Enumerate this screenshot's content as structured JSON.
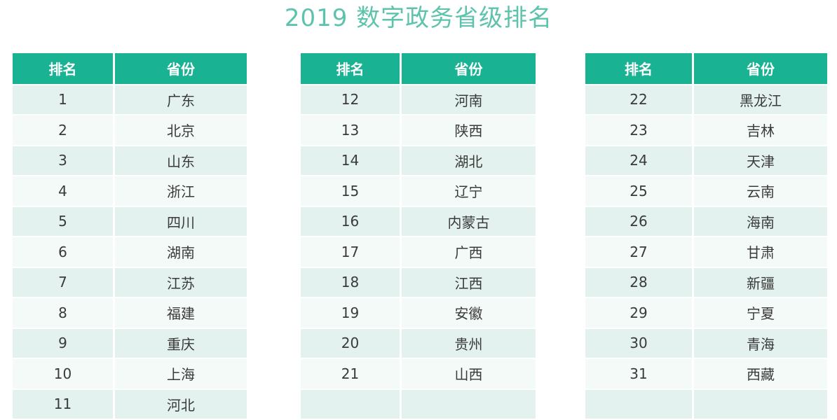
{
  "title": "2019 数字政务省级排名",
  "headers": {
    "rank": "排名",
    "province": "省份"
  },
  "colors": {
    "title": "#5ec3ad",
    "header_bg": "#19b293",
    "row_odd": "#e3f2ee",
    "row_even": "#f4faf8"
  },
  "tables": [
    {
      "rows": [
        {
          "rank": "1",
          "province": "广东"
        },
        {
          "rank": "2",
          "province": "北京"
        },
        {
          "rank": "3",
          "province": "山东"
        },
        {
          "rank": "4",
          "province": "浙江"
        },
        {
          "rank": "5",
          "province": "四川"
        },
        {
          "rank": "6",
          "province": "湖南"
        },
        {
          "rank": "7",
          "province": "江苏"
        },
        {
          "rank": "8",
          "province": "福建"
        },
        {
          "rank": "9",
          "province": "重庆"
        },
        {
          "rank": "10",
          "province": "上海"
        },
        {
          "rank": "11",
          "province": "河北"
        }
      ]
    },
    {
      "rows": [
        {
          "rank": "12",
          "province": "河南"
        },
        {
          "rank": "13",
          "province": "陕西"
        },
        {
          "rank": "14",
          "province": "湖北"
        },
        {
          "rank": "15",
          "province": "辽宁"
        },
        {
          "rank": "16",
          "province": "内蒙古"
        },
        {
          "rank": "17",
          "province": "广西"
        },
        {
          "rank": "18",
          "province": "江西"
        },
        {
          "rank": "19",
          "province": "安徽"
        },
        {
          "rank": "20",
          "province": "贵州"
        },
        {
          "rank": "21",
          "province": "山西"
        },
        {
          "rank": "",
          "province": ""
        }
      ]
    },
    {
      "rows": [
        {
          "rank": "22",
          "province": "黑龙江"
        },
        {
          "rank": "23",
          "province": "吉林"
        },
        {
          "rank": "24",
          "province": "天津"
        },
        {
          "rank": "25",
          "province": "云南"
        },
        {
          "rank": "26",
          "province": "海南"
        },
        {
          "rank": "27",
          "province": "甘肃"
        },
        {
          "rank": "28",
          "province": "新疆"
        },
        {
          "rank": "29",
          "province": "宁夏"
        },
        {
          "rank": "30",
          "province": "青海"
        },
        {
          "rank": "31",
          "province": "西藏"
        },
        {
          "rank": "",
          "province": ""
        }
      ]
    }
  ]
}
